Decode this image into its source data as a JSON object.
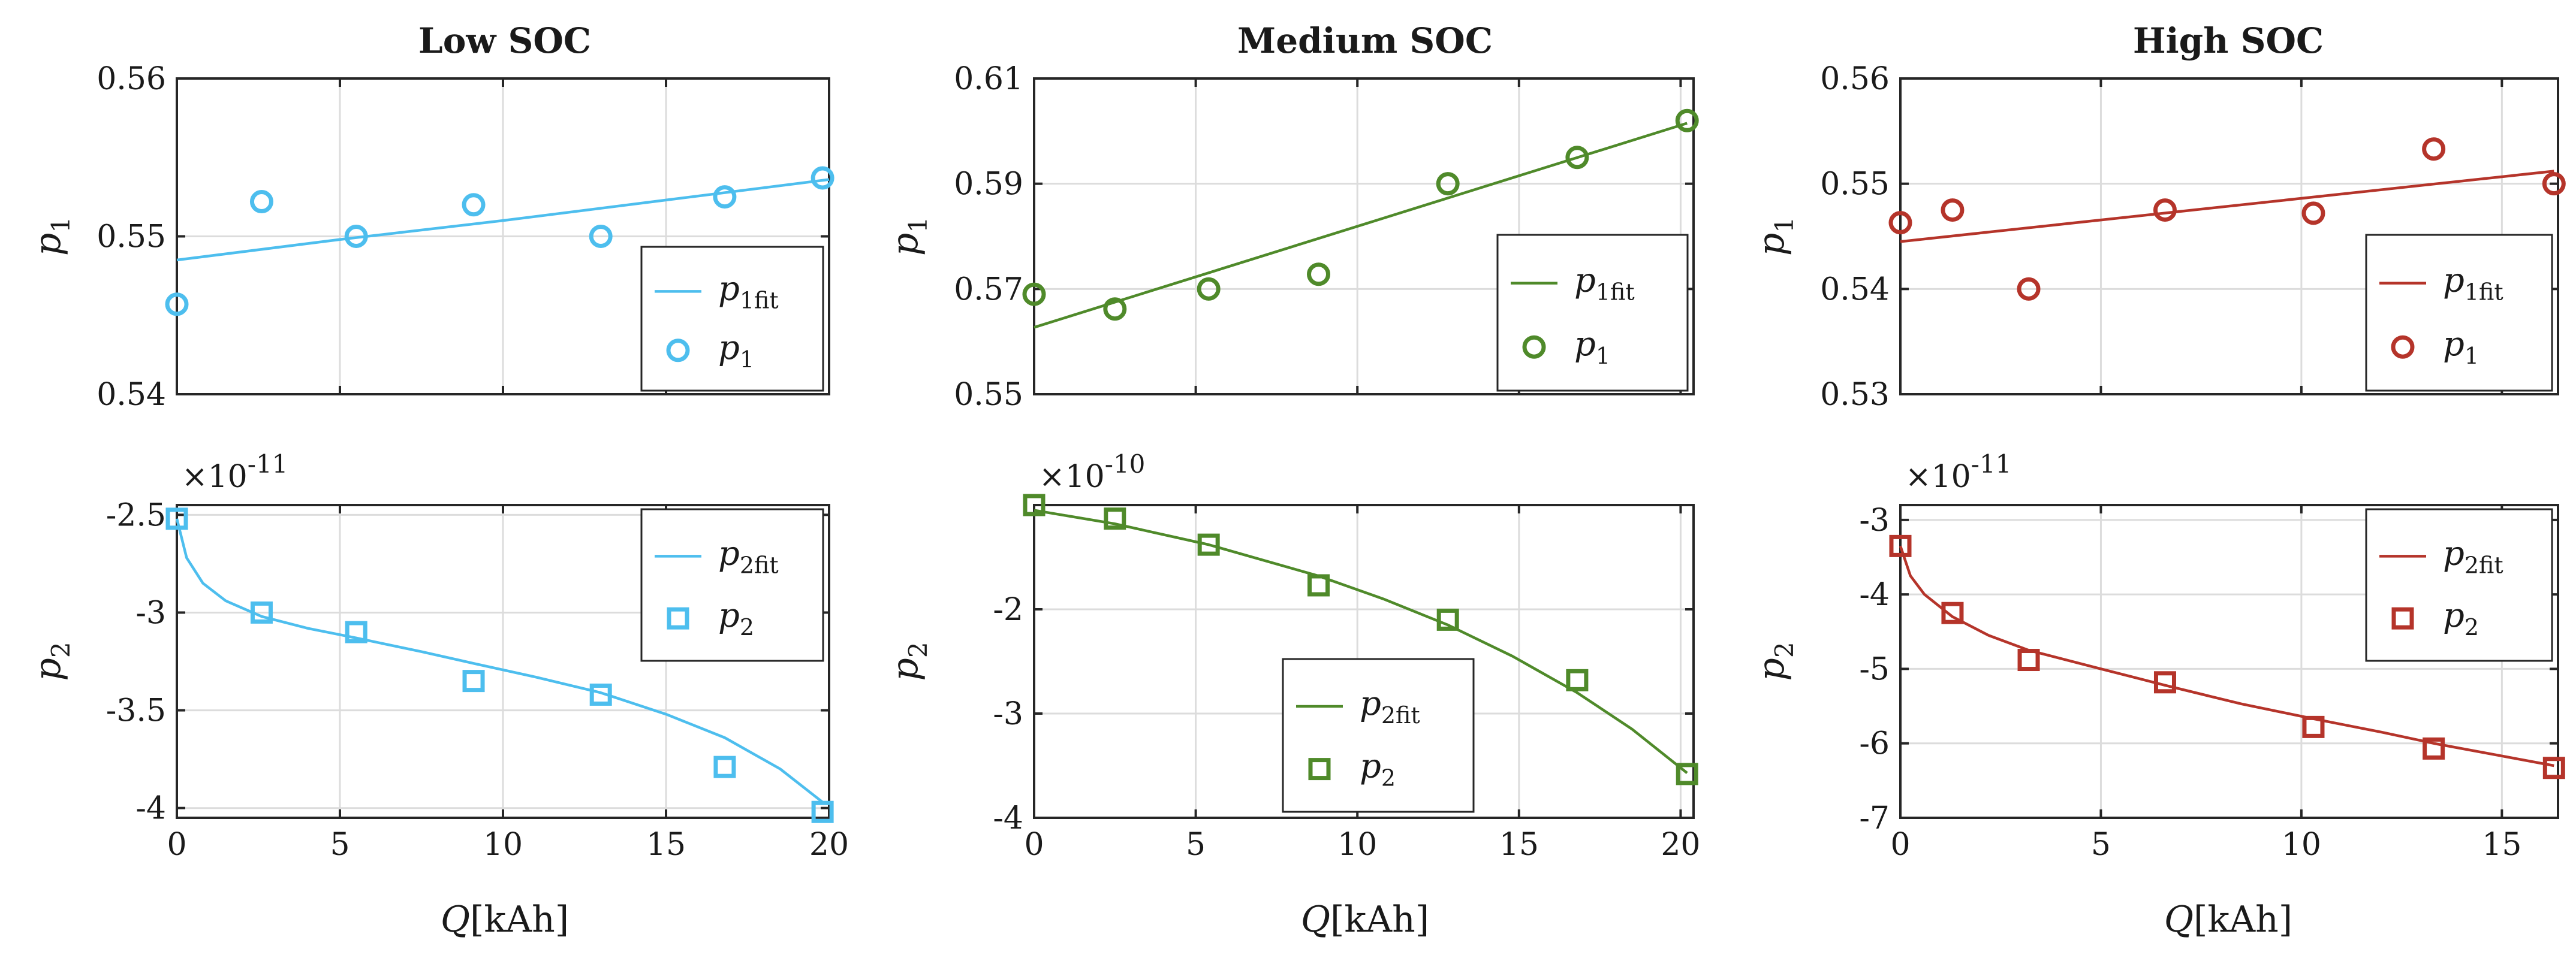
{
  "figure": {
    "panel_titles": [
      "Low SOC",
      "Medium SOC",
      "High SOC"
    ],
    "xlabel_var": "Q",
    "xlabel_unit": "[kAh]"
  },
  "colors": {
    "low": "#4dbeee",
    "medium": "#4f8a2a",
    "high": "#b5342a"
  },
  "chart_data": [
    {
      "type": "scatter",
      "id": "low-p1",
      "title": "Low SOC",
      "ylabel_var": "p",
      "ylabel_sub": "1",
      "xlim": [
        0,
        20
      ],
      "ylim": [
        0.54,
        0.56
      ],
      "xticks": [
        0,
        5,
        10,
        15,
        20
      ],
      "xtick_labels": [
        "",
        "",
        "",
        "",
        ""
      ],
      "yticks": [
        0.54,
        0.55,
        0.56
      ],
      "ytick_labels": [
        "0.54",
        "0.55",
        "0.56"
      ],
      "exponent": "",
      "marker": "circle",
      "color": "#4dbeee",
      "legend_position": "bottom-right",
      "legend": [
        {
          "var": "p",
          "sub": "1fit",
          "kind": "line"
        },
        {
          "var": "p",
          "sub": "1",
          "kind": "marker"
        }
      ],
      "series": [
        {
          "name": "p1",
          "x": [
            0,
            2.6,
            5.5,
            9.1,
            13.0,
            16.8,
            19.8
          ],
          "y": [
            0.5457,
            0.5522,
            0.55,
            0.552,
            0.55,
            0.5525,
            0.5537
          ]
        },
        {
          "name": "p1fit",
          "x": [
            0,
            5,
            10,
            15,
            20
          ],
          "y": [
            0.5485,
            0.5498,
            0.551,
            0.5523,
            0.5536
          ]
        }
      ]
    },
    {
      "type": "scatter",
      "id": "medium-p1",
      "title": "Medium SOC",
      "ylabel_var": "p",
      "ylabel_sub": "1",
      "xlim": [
        0,
        20.4
      ],
      "ylim": [
        0.55,
        0.61
      ],
      "xticks": [
        0,
        5,
        10,
        15,
        20
      ],
      "xtick_labels": [
        "",
        "",
        "",
        "",
        ""
      ],
      "yticks": [
        0.55,
        0.57,
        0.59,
        0.61
      ],
      "ytick_labels": [
        "0.55",
        "0.57",
        "0.59",
        "0.61"
      ],
      "exponent": "",
      "marker": "circle",
      "color": "#4f8a2a",
      "legend_position": "bottom-right",
      "legend": [
        {
          "var": "p",
          "sub": "1fit",
          "kind": "line"
        },
        {
          "var": "p",
          "sub": "1",
          "kind": "marker"
        }
      ],
      "series": [
        {
          "name": "p1",
          "x": [
            0,
            2.5,
            5.4,
            8.8,
            12.8,
            16.8,
            20.2
          ],
          "y": [
            0.569,
            0.5662,
            0.57,
            0.5728,
            0.59,
            0.595,
            0.602
          ]
        },
        {
          "name": "p1fit",
          "x": [
            0,
            20.2
          ],
          "y": [
            0.5627,
            0.6015
          ]
        }
      ]
    },
    {
      "type": "scatter",
      "id": "high-p1",
      "title": "High SOC",
      "ylabel_var": "p",
      "ylabel_sub": "1",
      "xlim": [
        0,
        16.4
      ],
      "ylim": [
        0.53,
        0.56
      ],
      "xticks": [
        0,
        5,
        10,
        15
      ],
      "xtick_labels": [
        "",
        "",
        "",
        ""
      ],
      "yticks": [
        0.53,
        0.54,
        0.55,
        0.56
      ],
      "ytick_labels": [
        "0.53",
        "0.54",
        "0.55",
        "0.56"
      ],
      "exponent": "",
      "marker": "circle",
      "color": "#b5342a",
      "legend_position": "bottom-right",
      "legend": [
        {
          "var": "p",
          "sub": "1fit",
          "kind": "line"
        },
        {
          "var": "p",
          "sub": "1",
          "kind": "marker"
        }
      ],
      "series": [
        {
          "name": "p1",
          "x": [
            0,
            1.3,
            3.2,
            6.6,
            10.3,
            13.3,
            16.3
          ],
          "y": [
            0.5463,
            0.5475,
            0.54,
            0.5475,
            0.5472,
            0.5533,
            0.55
          ]
        },
        {
          "name": "p1fit",
          "x": [
            0,
            16.3
          ],
          "y": [
            0.5445,
            0.5512
          ]
        }
      ]
    },
    {
      "type": "scatter",
      "id": "low-p2",
      "title": "",
      "ylabel_var": "p",
      "ylabel_sub": "2",
      "xlim": [
        0,
        20
      ],
      "ylim": [
        -4.05,
        -2.45
      ],
      "xticks": [
        0,
        5,
        10,
        15,
        20
      ],
      "xtick_labels": [
        "0",
        "5",
        "10",
        "15",
        "20"
      ],
      "yticks": [
        -4,
        -3.5,
        -3,
        -2.5
      ],
      "ytick_labels": [
        "-4",
        "-3.5",
        "-3",
        "-2.5"
      ],
      "exponent": "×10",
      "exponent_power": "-11",
      "marker": "square",
      "color": "#4dbeee",
      "legend_position": "top-right",
      "legend": [
        {
          "var": "p",
          "sub": "2fit",
          "kind": "line"
        },
        {
          "var": "p",
          "sub": "2",
          "kind": "marker"
        }
      ],
      "series": [
        {
          "name": "p2",
          "x": [
            0,
            2.6,
            5.5,
            9.1,
            13.0,
            16.8,
            19.8
          ],
          "y": [
            -2.52,
            -3.0,
            -3.1,
            -3.35,
            -3.42,
            -3.79,
            -4.02
          ]
        },
        {
          "name": "p2fit",
          "x": [
            0,
            0.3,
            0.8,
            1.5,
            2.6,
            4.0,
            5.5,
            7.5,
            9.1,
            11,
            13.0,
            15,
            16.8,
            18.5,
            19.8
          ],
          "y": [
            -2.52,
            -2.72,
            -2.85,
            -2.94,
            -3.02,
            -3.08,
            -3.13,
            -3.2,
            -3.26,
            -3.33,
            -3.41,
            -3.52,
            -3.64,
            -3.8,
            -3.97
          ]
        }
      ]
    },
    {
      "type": "scatter",
      "id": "medium-p2",
      "title": "",
      "ylabel_var": "p",
      "ylabel_sub": "2",
      "xlim": [
        0,
        20.4
      ],
      "ylim": [
        -4,
        -1
      ],
      "xticks": [
        0,
        5,
        10,
        15,
        20
      ],
      "xtick_labels": [
        "0",
        "5",
        "10",
        "15",
        "20"
      ],
      "yticks": [
        -4,
        -3,
        -2
      ],
      "ytick_labels": [
        "-4",
        "-3",
        "-2"
      ],
      "exponent": "×10",
      "exponent_power": "-10",
      "marker": "square",
      "color": "#4f8a2a",
      "legend_position": "bottom-center",
      "legend": [
        {
          "var": "p",
          "sub": "2fit",
          "kind": "line"
        },
        {
          "var": "p",
          "sub": "2",
          "kind": "marker"
        }
      ],
      "series": [
        {
          "name": "p2",
          "x": [
            0,
            2.5,
            5.4,
            8.8,
            12.8,
            16.8,
            20.2
          ],
          "y": [
            -1.0,
            -1.13,
            -1.38,
            -1.77,
            -2.1,
            -2.68,
            -3.58
          ]
        },
        {
          "name": "p2fit",
          "x": [
            0,
            2.5,
            5.4,
            8.8,
            10.8,
            12.8,
            14.8,
            16.8,
            18.5,
            20.2
          ],
          "y": [
            -1.05,
            -1.18,
            -1.38,
            -1.68,
            -1.9,
            -2.15,
            -2.45,
            -2.8,
            -3.15,
            -3.57
          ]
        }
      ]
    },
    {
      "type": "scatter",
      "id": "high-p2",
      "title": "",
      "ylabel_var": "p",
      "ylabel_sub": "2",
      "xlim": [
        0,
        16.4
      ],
      "ylim": [
        -7,
        -2.8
      ],
      "xticks": [
        0,
        5,
        10,
        15
      ],
      "xtick_labels": [
        "0",
        "5",
        "10",
        "15"
      ],
      "yticks": [
        -7,
        -6,
        -5,
        -4,
        -3
      ],
      "ytick_labels": [
        "-7",
        "-6",
        "-5",
        "-4",
        "-3"
      ],
      "exponent": "×10",
      "exponent_power": "-11",
      "marker": "square",
      "color": "#b5342a",
      "legend_position": "top-right",
      "legend": [
        {
          "var": "p",
          "sub": "2fit",
          "kind": "line"
        },
        {
          "var": "p",
          "sub": "2",
          "kind": "marker"
        }
      ],
      "series": [
        {
          "name": "p2",
          "x": [
            0,
            1.3,
            3.2,
            6.6,
            10.3,
            13.3,
            16.3
          ],
          "y": [
            -3.35,
            -4.25,
            -4.88,
            -5.18,
            -5.78,
            -6.07,
            -6.33
          ]
        },
        {
          "name": "p2fit",
          "x": [
            0,
            0.25,
            0.6,
            1.3,
            2.2,
            3.2,
            5,
            6.6,
            8.5,
            10.3,
            12,
            13.3,
            15,
            16.3
          ],
          "y": [
            -3.35,
            -3.75,
            -4.0,
            -4.3,
            -4.55,
            -4.75,
            -5.0,
            -5.22,
            -5.47,
            -5.67,
            -5.85,
            -6.0,
            -6.17,
            -6.3
          ]
        }
      ]
    }
  ]
}
